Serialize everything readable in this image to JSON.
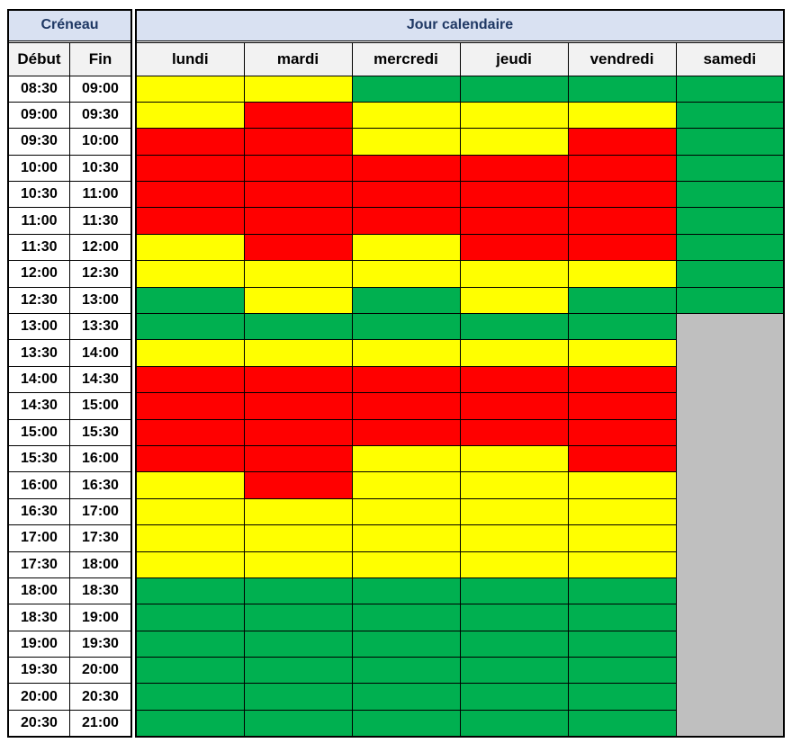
{
  "header": {
    "creneau_label": "Créneau",
    "jour_label": "Jour calendaire",
    "debut_label": "Début",
    "fin_label": "Fin",
    "days": [
      "lundi",
      "mardi",
      "mercredi",
      "jeudi",
      "vendredi",
      "samedi"
    ]
  },
  "colors": {
    "header_bg": "#D9E1F2",
    "header_text": "#1F3864",
    "subheader_bg": "#F2F2F2",
    "border": "#000000",
    "yellow": "#FFFF00",
    "red": "#FF0000",
    "green": "#00B050",
    "gray": "#BFBFBF"
  },
  "chart_data": {
    "type": "heatmap",
    "title": "Jour calendaire",
    "row_group_title": "Créneau",
    "columns": [
      "lundi",
      "mardi",
      "mercredi",
      "jeudi",
      "vendredi",
      "samedi"
    ],
    "color_legend": {
      "yellow": "#FFFF00",
      "red": "#FF0000",
      "green": "#00B050",
      "gray": "#BFBFBF"
    },
    "rows": [
      {
        "debut": "08:30",
        "fin": "09:00",
        "values": [
          "yellow",
          "yellow",
          "green",
          "green",
          "green",
          "green"
        ]
      },
      {
        "debut": "09:00",
        "fin": "09:30",
        "values": [
          "yellow",
          "red",
          "yellow",
          "yellow",
          "yellow",
          "green"
        ]
      },
      {
        "debut": "09:30",
        "fin": "10:00",
        "values": [
          "red",
          "red",
          "yellow",
          "yellow",
          "red",
          "green"
        ]
      },
      {
        "debut": "10:00",
        "fin": "10:30",
        "values": [
          "red",
          "red",
          "red",
          "red",
          "red",
          "green"
        ]
      },
      {
        "debut": "10:30",
        "fin": "11:00",
        "values": [
          "red",
          "red",
          "red",
          "red",
          "red",
          "green"
        ]
      },
      {
        "debut": "11:00",
        "fin": "11:30",
        "values": [
          "red",
          "red",
          "red",
          "red",
          "red",
          "green"
        ]
      },
      {
        "debut": "11:30",
        "fin": "12:00",
        "values": [
          "yellow",
          "red",
          "yellow",
          "red",
          "red",
          "green"
        ]
      },
      {
        "debut": "12:00",
        "fin": "12:30",
        "values": [
          "yellow",
          "yellow",
          "yellow",
          "yellow",
          "yellow",
          "green"
        ]
      },
      {
        "debut": "12:30",
        "fin": "13:00",
        "values": [
          "green",
          "yellow",
          "green",
          "yellow",
          "green",
          "green"
        ]
      },
      {
        "debut": "13:00",
        "fin": "13:30",
        "values": [
          "green",
          "green",
          "green",
          "green",
          "green",
          "gray"
        ]
      },
      {
        "debut": "13:30",
        "fin": "14:00",
        "values": [
          "yellow",
          "yellow",
          "yellow",
          "yellow",
          "yellow",
          "gray"
        ]
      },
      {
        "debut": "14:00",
        "fin": "14:30",
        "values": [
          "red",
          "red",
          "red",
          "red",
          "red",
          "gray"
        ]
      },
      {
        "debut": "14:30",
        "fin": "15:00",
        "values": [
          "red",
          "red",
          "red",
          "red",
          "red",
          "gray"
        ]
      },
      {
        "debut": "15:00",
        "fin": "15:30",
        "values": [
          "red",
          "red",
          "red",
          "red",
          "red",
          "gray"
        ]
      },
      {
        "debut": "15:30",
        "fin": "16:00",
        "values": [
          "red",
          "red",
          "yellow",
          "yellow",
          "red",
          "gray"
        ]
      },
      {
        "debut": "16:00",
        "fin": "16:30",
        "values": [
          "yellow",
          "red",
          "yellow",
          "yellow",
          "yellow",
          "gray"
        ]
      },
      {
        "debut": "16:30",
        "fin": "17:00",
        "values": [
          "yellow",
          "yellow",
          "yellow",
          "yellow",
          "yellow",
          "gray"
        ]
      },
      {
        "debut": "17:00",
        "fin": "17:30",
        "values": [
          "yellow",
          "yellow",
          "yellow",
          "yellow",
          "yellow",
          "gray"
        ]
      },
      {
        "debut": "17:30",
        "fin": "18:00",
        "values": [
          "yellow",
          "yellow",
          "yellow",
          "yellow",
          "yellow",
          "gray"
        ]
      },
      {
        "debut": "18:00",
        "fin": "18:30",
        "values": [
          "green",
          "green",
          "green",
          "green",
          "green",
          "gray"
        ]
      },
      {
        "debut": "18:30",
        "fin": "19:00",
        "values": [
          "green",
          "green",
          "green",
          "green",
          "green",
          "gray"
        ]
      },
      {
        "debut": "19:00",
        "fin": "19:30",
        "values": [
          "green",
          "green",
          "green",
          "green",
          "green",
          "gray"
        ]
      },
      {
        "debut": "19:30",
        "fin": "20:00",
        "values": [
          "green",
          "green",
          "green",
          "green",
          "green",
          "gray"
        ]
      },
      {
        "debut": "20:00",
        "fin": "20:30",
        "values": [
          "green",
          "green",
          "green",
          "green",
          "green",
          "gray"
        ]
      },
      {
        "debut": "20:30",
        "fin": "21:00",
        "values": [
          "green",
          "green",
          "green",
          "green",
          "green",
          "gray"
        ]
      }
    ]
  }
}
